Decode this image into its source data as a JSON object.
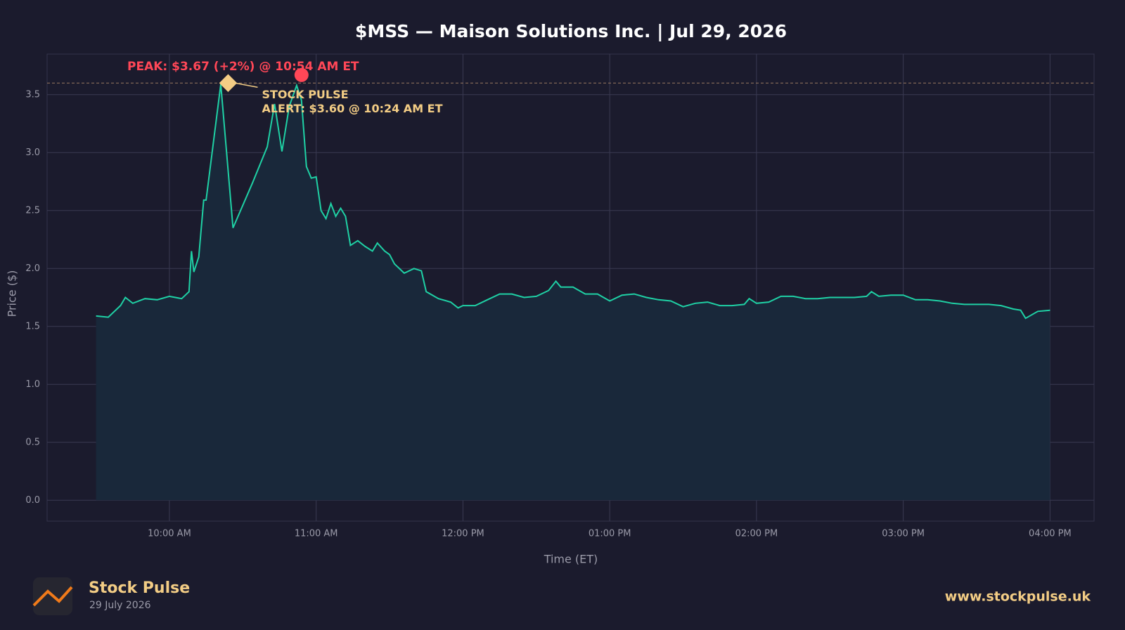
{
  "chart_data": {
    "type": "line",
    "title": "$MSS — Maison Solutions Inc.  |  Jul 29, 2026",
    "x_label": "Time (ET)",
    "y_label": "Price ($)",
    "color": "#1fd1a5",
    "fill": "#19283a",
    "grid": true,
    "xlim": [
      "09:10 AM",
      "04:18 PM"
    ],
    "ylim": [
      -0.18,
      3.85
    ],
    "xticks": [
      "10:00 AM",
      "11:00 AM",
      "12:00 PM",
      "01:00 PM",
      "02:00 PM",
      "03:00 PM",
      "04:00 PM"
    ],
    "yticks": [
      {
        "value": 0,
        "label": "0.0"
      },
      {
        "value": 0.5,
        "label": "0.5"
      },
      {
        "value": 1,
        "label": "1.0"
      },
      {
        "value": 1.5,
        "label": "1.5"
      },
      {
        "value": 2,
        "label": "2.0"
      },
      {
        "value": 2.5,
        "label": "2.5"
      },
      {
        "value": 3,
        "label": "3.0"
      },
      {
        "value": 3.5,
        "label": "3.5"
      }
    ],
    "x": [
      "09:30 AM",
      "09:35 AM",
      "09:40 AM",
      "09:42 AM",
      "09:45 AM",
      "09:50 AM",
      "09:55 AM",
      "10:00 AM",
      "10:05 AM",
      "10:08 AM",
      "10:09 AM",
      "10:10 AM",
      "10:12 AM",
      "10:14 AM",
      "10:15 AM",
      "10:21 AM",
      "10:26 AM",
      "10:34 AM",
      "10:40 AM",
      "10:43 AM",
      "10:46 AM",
      "10:49 AM",
      "10:52 AM",
      "10:54 AM",
      "10:56 AM",
      "10:58 AM",
      "11:00 AM",
      "11:02 AM",
      "11:04 AM",
      "11:06 AM",
      "11:08 AM",
      "11:10 AM",
      "11:12 AM",
      "11:14 AM",
      "11:17 AM",
      "11:20 AM",
      "11:23 AM",
      "11:25 AM",
      "11:28 AM",
      "11:30 AM",
      "11:32 AM",
      "11:36 AM",
      "11:40 AM",
      "11:43 AM",
      "11:45 AM",
      "11:50 AM",
      "11:55 AM",
      "11:58 AM",
      "12:00 PM",
      "12:05 PM",
      "12:10 PM",
      "12:15 PM",
      "12:20 PM",
      "12:25 PM",
      "12:30 PM",
      "12:35 PM",
      "12:38 PM",
      "12:40 PM",
      "12:45 PM",
      "12:50 PM",
      "12:55 PM",
      "01:00 PM",
      "01:05 PM",
      "01:10 PM",
      "01:15 PM",
      "01:20 PM",
      "01:25 PM",
      "01:30 PM",
      "01:35 PM",
      "01:40 PM",
      "01:45 PM",
      "01:50 PM",
      "01:55 PM",
      "01:57 PM",
      "02:00 PM",
      "02:05 PM",
      "02:10 PM",
      "02:15 PM",
      "02:20 PM",
      "02:25 PM",
      "02:30 PM",
      "02:35 PM",
      "02:40 PM",
      "02:45 PM",
      "02:47 PM",
      "02:50 PM",
      "02:55 PM",
      "03:00 PM",
      "03:05 PM",
      "03:10 PM",
      "03:15 PM",
      "03:20 PM",
      "03:25 PM",
      "03:30 PM",
      "03:35 PM",
      "03:40 PM",
      "03:45 PM",
      "03:48 PM",
      "03:50 PM",
      "03:55 PM",
      "04:00 PM"
    ],
    "values": [
      1.59,
      1.58,
      1.68,
      1.75,
      1.7,
      1.74,
      1.73,
      1.76,
      1.74,
      1.8,
      2.15,
      1.97,
      2.1,
      2.59,
      2.59,
      3.59,
      2.35,
      2.74,
      3.05,
      3.42,
      3.01,
      3.4,
      3.58,
      3.45,
      2.88,
      2.78,
      2.79,
      2.5,
      2.43,
      2.56,
      2.45,
      2.52,
      2.45,
      2.2,
      2.24,
      2.19,
      2.15,
      2.22,
      2.15,
      2.12,
      2.04,
      1.96,
      2.0,
      1.98,
      1.8,
      1.74,
      1.71,
      1.66,
      1.68,
      1.68,
      1.73,
      1.78,
      1.78,
      1.75,
      1.76,
      1.81,
      1.89,
      1.84,
      1.84,
      1.78,
      1.78,
      1.72,
      1.77,
      1.78,
      1.75,
      1.73,
      1.72,
      1.67,
      1.7,
      1.71,
      1.68,
      1.68,
      1.69,
      1.74,
      1.7,
      1.71,
      1.76,
      1.76,
      1.74,
      1.74,
      1.75,
      1.75,
      1.75,
      1.76,
      1.8,
      1.76,
      1.77,
      1.77,
      1.73,
      1.73,
      1.72,
      1.7,
      1.69,
      1.69,
      1.69,
      1.68,
      1.65,
      1.64,
      1.57,
      1.63,
      1.64
    ],
    "peak": {
      "text": "PEAK: $3.67 (+2%) @ 10:54 AM ET",
      "x": "10:54 AM",
      "y": 3.67,
      "color": "#ff4757"
    },
    "alert": {
      "lines": [
        "STOCK PULSE",
        "ALERT: $3.60 @ 10:24 AM ET"
      ],
      "x": "10:24 AM",
      "y": 3.6,
      "color": "#f3cd85"
    }
  },
  "footer": {
    "brand": "Stock Pulse",
    "date": "29 July 2026",
    "url": "www.stockpulse.uk"
  }
}
